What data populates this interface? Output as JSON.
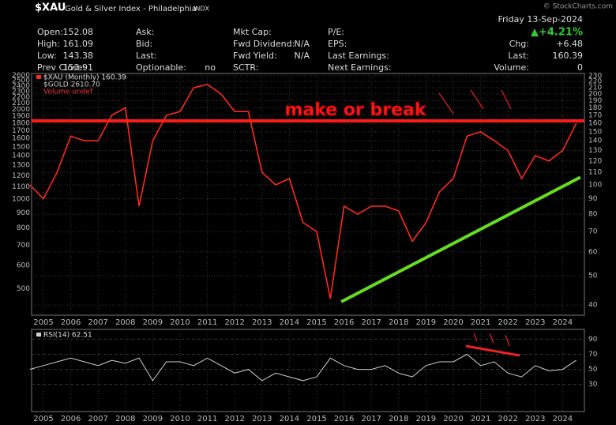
{
  "header": {
    "copyright": "© StockCharts.com",
    "columns": [
      [
        [
          "Open:",
          "152.08"
        ],
        [
          "High:",
          "161.09"
        ],
        [
          "Low:",
          "143.38"
        ],
        [
          "Prev Close:",
          "153.91"
        ]
      ],
      [
        [
          "Ask:",
          ""
        ],
        [
          "Bid:",
          ""
        ],
        [
          "Last:",
          ""
        ],
        [
          "Optionable:",
          "no"
        ]
      ],
      [
        [
          "Mkt Cap:",
          ""
        ],
        [
          "Fwd Dividend:",
          "N/A"
        ],
        [
          "Fwd Yield:",
          "N/A"
        ],
        [
          "SCTR:",
          ""
        ]
      ],
      [
        [
          "P/E:",
          ""
        ],
        [
          "EPS:",
          ""
        ],
        [
          "Last Earnings:",
          ""
        ],
        [
          "Next Earnings:",
          ""
        ]
      ]
    ],
    "date": "Friday 13-Sep-2024",
    "change_pct": "▲+4.21%",
    "right": [
      [
        "Chg:",
        "+6.48"
      ],
      [
        "Last:",
        "160.39"
      ],
      [
        "Volume:",
        "0"
      ]
    ]
  },
  "chart_data": [
    {
      "type": "line",
      "title": "$XAU",
      "subtitle": "Gold & Silver Index - Philadelphia",
      "exchange": "INDX",
      "categories": [
        null,
        "2005",
        null,
        "2006",
        null,
        "2007",
        null,
        "2008",
        null,
        "2009",
        null,
        "2010",
        null,
        "2011",
        null,
        "2012",
        null,
        "2013",
        null,
        "2014",
        null,
        "2015",
        null,
        "2016",
        null,
        "2017",
        null,
        "2018",
        null,
        "2019",
        null,
        "2020",
        null,
        "2021",
        null,
        "2022",
        null,
        "2023",
        null,
        "2024",
        null
      ],
      "series": [
        {
          "name": "$XAU (Monthly) 160.39",
          "color": "#ff2a1a",
          "values": [
            100,
            90,
            110,
            145,
            140,
            140,
            170,
            180,
            85,
            140,
            170,
            175,
            210,
            215,
            200,
            175,
            175,
            110,
            100,
            105,
            75,
            70,
            42,
            85,
            80,
            85,
            85,
            82,
            65,
            75,
            95,
            105,
            145,
            150,
            140,
            130,
            105,
            125,
            120,
            130,
            160
          ]
        }
      ],
      "legend_extra": [
        "$GOLD 2610.70",
        "Volume undef"
      ],
      "log_scale": true,
      "grid": true,
      "ylim": [
        37,
        234
      ],
      "yticks": [
        40,
        50,
        60,
        70,
        80,
        90,
        100,
        110,
        120,
        130,
        140,
        150,
        160,
        170,
        180,
        190,
        200,
        210,
        220,
        230
      ],
      "y2lim": [
        408,
        2644
      ],
      "y2ticks": [
        500,
        600,
        700,
        800,
        900,
        1000,
        1100,
        1200,
        1300,
        1400,
        1500,
        1600,
        1700,
        1800,
        1900,
        2000,
        2100,
        2200,
        2300,
        2400,
        2500,
        2600
      ],
      "annotation": "make or break",
      "resistance": 163,
      "support_trend": [
        41,
        106
      ]
    },
    {
      "type": "line",
      "categories": [
        null,
        "2005",
        null,
        "2006",
        null,
        "2007",
        null,
        "2008",
        null,
        "2009",
        null,
        "2010",
        null,
        "2011",
        null,
        "2012",
        null,
        "2013",
        null,
        "2014",
        null,
        "2015",
        null,
        "2016",
        null,
        "2017",
        null,
        "2018",
        null,
        "2019",
        null,
        "2020",
        null,
        "2021",
        null,
        "2022",
        null,
        "2023",
        null,
        "2024",
        null
      ],
      "series": [
        {
          "name": "RSI(14) 62.51",
          "color": "#d0d0d0",
          "values": [
            50,
            55,
            60,
            65,
            60,
            55,
            62,
            58,
            65,
            35,
            60,
            60,
            55,
            65,
            55,
            45,
            50,
            35,
            45,
            40,
            35,
            40,
            65,
            55,
            50,
            50,
            55,
            45,
            40,
            55,
            60,
            60,
            70,
            55,
            60,
            45,
            40,
            55,
            48,
            50,
            62
          ]
        }
      ],
      "ylim": [
        -6,
        103
      ],
      "yticks": [
        30,
        50,
        70,
        90
      ],
      "grid": true
    }
  ]
}
